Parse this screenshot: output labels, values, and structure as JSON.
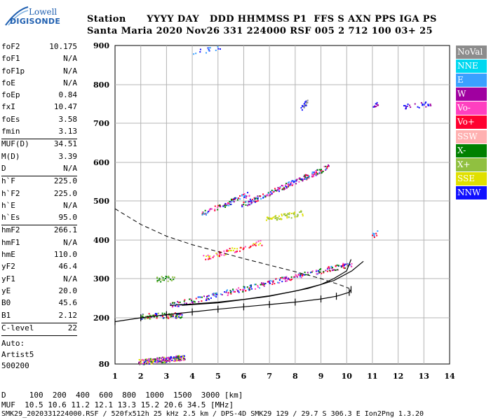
{
  "logo": {
    "line1": "Lowell",
    "line2": "DIGISONDE"
  },
  "header": {
    "row1": "Station      YYYY DAY   DDD HHMMSS P1  FFS S AXN PPS IGA PS",
    "row2": "Santa Maria 2020 Nov26 331 224000 RSF 005 2 712 100 03+ 25"
  },
  "params": [
    {
      "label": "foF2",
      "value": "10.175"
    },
    {
      "label": "foF1",
      "value": "N/A"
    },
    {
      "label": "foF1p",
      "value": "N/A"
    },
    {
      "label": "foE",
      "value": "N/A"
    },
    {
      "label": "foEp",
      "value": "0.84"
    },
    {
      "label": "fxI",
      "value": "10.47"
    },
    {
      "label": "foEs",
      "value": "3.58"
    },
    {
      "label": "fmin",
      "value": "3.13"
    },
    {
      "sep": true
    },
    {
      "label": "MUF(D)",
      "value": "34.51"
    },
    {
      "label": "M(D)",
      "value": "3.39"
    },
    {
      "label": "D",
      "value": "N/A"
    },
    {
      "sep": true
    },
    {
      "label": "h`F",
      "value": "225.0"
    },
    {
      "label": "h`F2",
      "value": "225.0"
    },
    {
      "label": "h`E",
      "value": "N/A"
    },
    {
      "label": "h`Es",
      "value": "95.0"
    },
    {
      "sep": true
    },
    {
      "label": "hmF2",
      "value": "266.1"
    },
    {
      "label": "hmF1",
      "value": "N/A"
    },
    {
      "label": "hmE",
      "value": "110.0"
    },
    {
      "label": "yF2",
      "value": "46.4"
    },
    {
      "label": "yF1",
      "value": "N/A"
    },
    {
      "label": "yE",
      "value": "20.0"
    },
    {
      "label": "B0",
      "value": "45.6"
    },
    {
      "label": "B1",
      "value": "2.12"
    },
    {
      "sep": true
    },
    {
      "label": "C-level",
      "value": "22"
    },
    {
      "sep": true
    }
  ],
  "autoscaling": {
    "line1": "Auto:",
    "line2": "Artist5",
    "line3": "500200"
  },
  "legend": [
    {
      "label": "NoVal",
      "color": "#8c8c8c"
    },
    {
      "label": "NNE",
      "color": "#00d8f0"
    },
    {
      "label": "E",
      "color": "#3aa0ff"
    },
    {
      "label": "W",
      "color": "#a000a0"
    },
    {
      "label": "Vo-",
      "color": "#ff40c0"
    },
    {
      "label": "Vo+",
      "color": "#ff0030"
    },
    {
      "label": "SSW",
      "color": "#ffb0b0"
    },
    {
      "label": "X-",
      "color": "#008000"
    },
    {
      "label": "X+",
      "color": "#90c040"
    },
    {
      "label": "SSE",
      "color": "#e0e000"
    },
    {
      "label": "NNW",
      "color": "#1010ff"
    }
  ],
  "chart_data": {
    "type": "scatter",
    "x_ticks": [
      "1",
      "2",
      "3",
      "4",
      "5",
      "6",
      "7",
      "8",
      "9",
      "10",
      "11",
      "12",
      "13",
      "14"
    ],
    "y_ticks": [
      "80",
      "200",
      "300",
      "400",
      "500",
      "600",
      "700",
      "800",
      "900"
    ],
    "xlim": [
      1,
      14
    ],
    "ylim": [
      80,
      900
    ],
    "y_scale": "nonlinear",
    "grid": true,
    "series": [
      {
        "name": "O-trace",
        "values": [
          [
            3.13,
            232
          ],
          [
            4,
            235
          ],
          [
            5,
            240
          ],
          [
            6,
            247
          ],
          [
            7,
            256
          ],
          [
            8,
            268
          ],
          [
            9,
            285
          ],
          [
            9.5,
            300
          ],
          [
            10.0,
            320
          ],
          [
            10.17,
            350
          ]
        ]
      },
      {
        "name": "X-trace",
        "values": [
          [
            3.6,
            232
          ],
          [
            5,
            238
          ],
          [
            7,
            255
          ],
          [
            8.5,
            275
          ],
          [
            9.5,
            295
          ],
          [
            10.2,
            320
          ],
          [
            10.65,
            345
          ]
        ]
      },
      {
        "name": "True height",
        "values": [
          [
            1.0,
            190
          ],
          [
            2,
            200
          ],
          [
            3,
            208
          ],
          [
            4,
            215
          ],
          [
            5,
            222
          ],
          [
            6,
            228
          ],
          [
            7,
            234
          ],
          [
            8,
            240
          ],
          [
            9,
            248
          ],
          [
            9.6,
            255
          ],
          [
            10.1,
            265
          ],
          [
            10.17,
            272
          ]
        ]
      },
      {
        "name": "Es",
        "values": [
          [
            2.0,
            95
          ],
          [
            3.6,
            95
          ]
        ]
      }
    ]
  },
  "footer": {
    "line1": "D     100  200  400  600  800  1000  1500  3000 [km]",
    "line2": "MUF  10.5 10.6 11.2 12.1 13.3 15.2 20.6 34.5 [MHz]",
    "line3": "SMK29_2020331224000.RSF / 520fx512h 25 kHz 2.5 km / DPS-4D SMK29 129 / 29.7 S 306.3 E Ion2Png 1.3.20"
  }
}
